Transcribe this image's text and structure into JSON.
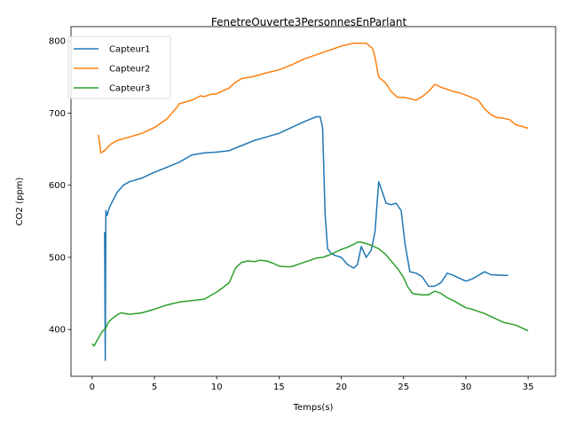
{
  "chart_data": {
    "type": "line",
    "title": "FenetreOuverte3PersonnesEnParlant",
    "xlabel": "Temps(s)",
    "ylabel": "CO2 (ppm)",
    "xlim": [
      -1.7,
      37.2
    ],
    "ylim": [
      335,
      820
    ],
    "xticks": [
      0,
      5,
      10,
      15,
      20,
      25,
      30,
      35
    ],
    "yticks": [
      400,
      500,
      600,
      700,
      800
    ],
    "grid": false,
    "legend_position": "upper-left",
    "series": [
      {
        "name": "Capteur1",
        "color": "#1f77b4",
        "points": [
          [
            1.0,
            535
          ],
          [
            1.05,
            357
          ],
          [
            1.1,
            565
          ],
          [
            1.2,
            558
          ],
          [
            1.4,
            570
          ],
          [
            1.7,
            580
          ],
          [
            2.0,
            590
          ],
          [
            2.5,
            600
          ],
          [
            3.0,
            605
          ],
          [
            4.0,
            610
          ],
          [
            5.0,
            618
          ],
          [
            6.0,
            625
          ],
          [
            7.0,
            632
          ],
          [
            8.0,
            642
          ],
          [
            9.0,
            645
          ],
          [
            10.0,
            646
          ],
          [
            11.0,
            648
          ],
          [
            12.0,
            655
          ],
          [
            13.0,
            662
          ],
          [
            14.0,
            667
          ],
          [
            15.0,
            672
          ],
          [
            16.0,
            680
          ],
          [
            17.0,
            688
          ],
          [
            18.0,
            695
          ],
          [
            18.3,
            695
          ],
          [
            18.5,
            680
          ],
          [
            18.7,
            560
          ],
          [
            18.9,
            512
          ],
          [
            19.2,
            505
          ],
          [
            19.6,
            502
          ],
          [
            20.0,
            500
          ],
          [
            20.5,
            490
          ],
          [
            21.0,
            485
          ],
          [
            21.3,
            490
          ],
          [
            21.6,
            515
          ],
          [
            22.0,
            500
          ],
          [
            22.4,
            510
          ],
          [
            22.7,
            535
          ],
          [
            23.0,
            605
          ],
          [
            23.3,
            590
          ],
          [
            23.6,
            575
          ],
          [
            24.0,
            573
          ],
          [
            24.4,
            575
          ],
          [
            24.8,
            565
          ],
          [
            25.1,
            520
          ],
          [
            25.5,
            480
          ],
          [
            26.0,
            478
          ],
          [
            26.5,
            473
          ],
          [
            27.0,
            460
          ],
          [
            27.5,
            460
          ],
          [
            28.0,
            465
          ],
          [
            28.5,
            478
          ],
          [
            29.0,
            475
          ],
          [
            30.0,
            467
          ],
          [
            30.5,
            470
          ],
          [
            31.0,
            475
          ],
          [
            31.5,
            480
          ],
          [
            32.0,
            476
          ],
          [
            33.0,
            475
          ],
          [
            33.4,
            475
          ]
        ]
      },
      {
        "name": "Capteur2",
        "color": "#ff7f0e",
        "points": [
          [
            0.5,
            670
          ],
          [
            0.7,
            645
          ],
          [
            1.0,
            648
          ],
          [
            1.5,
            657
          ],
          [
            2.0,
            662
          ],
          [
            3.0,
            667
          ],
          [
            4.0,
            672
          ],
          [
            5.0,
            680
          ],
          [
            6.0,
            692
          ],
          [
            6.8,
            708
          ],
          [
            7.0,
            713
          ],
          [
            8.0,
            718
          ],
          [
            8.7,
            724
          ],
          [
            9.0,
            723
          ],
          [
            9.5,
            726
          ],
          [
            10.0,
            727
          ],
          [
            11.0,
            735
          ],
          [
            11.5,
            743
          ],
          [
            12.0,
            748
          ],
          [
            13.0,
            751
          ],
          [
            14.0,
            756
          ],
          [
            15.0,
            760
          ],
          [
            16.0,
            767
          ],
          [
            17.0,
            775
          ],
          [
            18.0,
            781
          ],
          [
            19.0,
            787
          ],
          [
            20.0,
            793
          ],
          [
            21.0,
            797
          ],
          [
            22.0,
            797
          ],
          [
            22.5,
            790
          ],
          [
            22.7,
            778
          ],
          [
            23.0,
            750
          ],
          [
            23.5,
            743
          ],
          [
            24.0,
            730
          ],
          [
            24.5,
            722
          ],
          [
            25.0,
            722
          ],
          [
            25.5,
            720
          ],
          [
            26.0,
            718
          ],
          [
            26.5,
            723
          ],
          [
            27.0,
            730
          ],
          [
            27.5,
            740
          ],
          [
            28.0,
            736
          ],
          [
            28.5,
            733
          ],
          [
            29.0,
            730
          ],
          [
            29.5,
            728
          ],
          [
            30.0,
            725
          ],
          [
            31.0,
            718
          ],
          [
            31.5,
            706
          ],
          [
            32.0,
            698
          ],
          [
            32.5,
            694
          ],
          [
            33.0,
            693
          ],
          [
            33.5,
            691
          ],
          [
            34.0,
            684
          ],
          [
            35.0,
            679
          ]
        ]
      },
      {
        "name": "Capteur3",
        "color": "#2ca02c",
        "points": [
          [
            0.0,
            380
          ],
          [
            0.15,
            377
          ],
          [
            0.4,
            385
          ],
          [
            0.8,
            397
          ],
          [
            1.1,
            402
          ],
          [
            1.3,
            410
          ],
          [
            1.6,
            415
          ],
          [
            2.0,
            420
          ],
          [
            2.3,
            423
          ],
          [
            3.0,
            421
          ],
          [
            4.0,
            423
          ],
          [
            5.0,
            428
          ],
          [
            6.0,
            434
          ],
          [
            7.0,
            438
          ],
          [
            8.0,
            440
          ],
          [
            9.0,
            442
          ],
          [
            10.0,
            452
          ],
          [
            10.5,
            458
          ],
          [
            11.0,
            465
          ],
          [
            11.5,
            485
          ],
          [
            12.0,
            493
          ],
          [
            12.5,
            495
          ],
          [
            13.0,
            494
          ],
          [
            13.5,
            496
          ],
          [
            14.0,
            495
          ],
          [
            14.5,
            492
          ],
          [
            15.0,
            488
          ],
          [
            15.5,
            487
          ],
          [
            16.0,
            487
          ],
          [
            16.5,
            490
          ],
          [
            17.0,
            493
          ],
          [
            17.5,
            496
          ],
          [
            18.0,
            499
          ],
          [
            18.5,
            500
          ],
          [
            19.0,
            503
          ],
          [
            19.5,
            507
          ],
          [
            20.0,
            511
          ],
          [
            20.5,
            514
          ],
          [
            21.0,
            518
          ],
          [
            21.3,
            521
          ],
          [
            21.6,
            521
          ],
          [
            22.0,
            519
          ],
          [
            22.5,
            516
          ],
          [
            23.0,
            512
          ],
          [
            23.5,
            505
          ],
          [
            24.0,
            495
          ],
          [
            24.5,
            485
          ],
          [
            25.0,
            472
          ],
          [
            25.3,
            460
          ],
          [
            25.7,
            450
          ],
          [
            26.0,
            449
          ],
          [
            26.5,
            448
          ],
          [
            27.0,
            448
          ],
          [
            27.5,
            453
          ],
          [
            28.0,
            450
          ],
          [
            28.5,
            444
          ],
          [
            29.0,
            440
          ],
          [
            29.5,
            435
          ],
          [
            30.0,
            430
          ],
          [
            30.5,
            428
          ],
          [
            31.0,
            425
          ],
          [
            31.5,
            422
          ],
          [
            32.0,
            418
          ],
          [
            32.5,
            414
          ],
          [
            33.0,
            410
          ],
          [
            33.5,
            408
          ],
          [
            34.0,
            406
          ],
          [
            35.0,
            398
          ]
        ]
      }
    ]
  }
}
